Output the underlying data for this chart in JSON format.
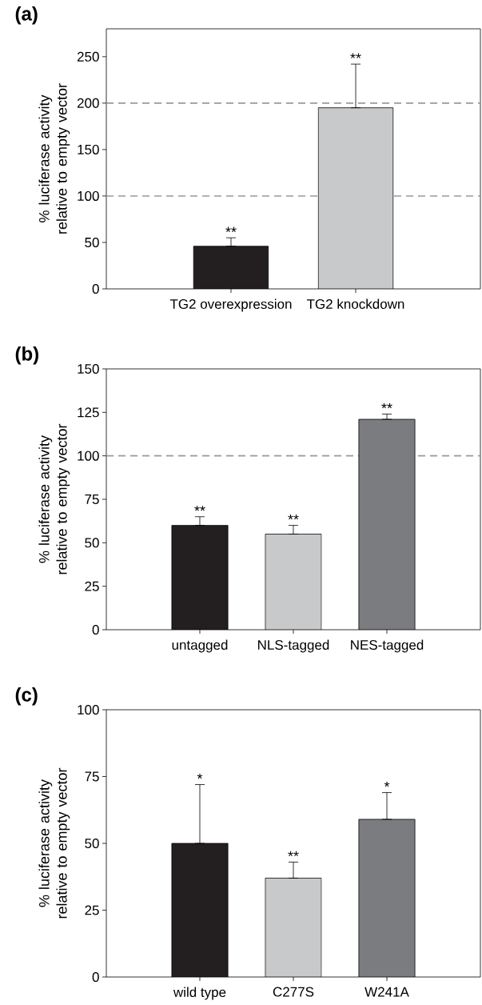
{
  "chart_data": [
    {
      "type": "bar",
      "title": "(a)",
      "ylabel": "% luciferase activity relative to empty vector",
      "categories": [
        "TG2 overexpression",
        "TG2 knockdown"
      ],
      "values": [
        46,
        195
      ],
      "errors": [
        [
          46,
          55
        ],
        [
          195,
          242
        ]
      ],
      "colors": [
        "#231f20",
        "#c8c9cb"
      ],
      "ylim": [
        0,
        280
      ],
      "yticks": [
        0,
        50,
        100,
        150,
        200,
        250
      ],
      "ref_lines": [
        {
          "axis": "y",
          "value": 100,
          "color": "#999999",
          "line_style": "dashed"
        },
        {
          "axis": "y",
          "value": 200,
          "color": "#999999",
          "line_style": "dashed"
        }
      ],
      "annotations": [
        {
          "text": "**",
          "x": "TG2 overexpression",
          "y": 55
        },
        {
          "text": "**",
          "x": "TG2 knockdown",
          "y": 242
        }
      ]
    },
    {
      "type": "bar",
      "title": "(b)",
      "ylabel": "% luciferase activity relative to empty vector",
      "categories": [
        "untagged",
        "NLS-tagged",
        "NES-tagged"
      ],
      "values": [
        60,
        55,
        121
      ],
      "errors": [
        [
          60,
          65
        ],
        [
          55,
          60
        ],
        [
          121,
          124
        ]
      ],
      "colors": [
        "#231f20",
        "#c8c9cb",
        "#7b7c7f"
      ],
      "ylim": [
        0,
        150
      ],
      "yticks": [
        0,
        25,
        50,
        75,
        100,
        125,
        150
      ],
      "ref_lines": [
        {
          "axis": "y",
          "value": 100,
          "color": "#999999",
          "line_style": "dashed"
        }
      ],
      "annotations": [
        {
          "text": "**",
          "x": "untagged",
          "y": 65
        },
        {
          "text": "**",
          "x": "NLS-tagged",
          "y": 60
        },
        {
          "text": "**",
          "x": "NES-tagged",
          "y": 124
        }
      ]
    },
    {
      "type": "bar",
      "title": "(c)",
      "ylabel": "% luciferase activity relative to empty vector",
      "categories": [
        "wild type",
        "C277S",
        "W241A"
      ],
      "values": [
        50,
        37,
        59
      ],
      "errors": [
        [
          50,
          72
        ],
        [
          37,
          43
        ],
        [
          59,
          69
        ]
      ],
      "colors": [
        "#231f20",
        "#c8c9cb",
        "#7b7c7f"
      ],
      "ylim": [
        0,
        100
      ],
      "yticks": [
        0,
        25,
        50,
        75,
        100
      ],
      "annotations": [
        {
          "text": "*",
          "x": "wild type",
          "y": 72
        },
        {
          "text": "**",
          "x": "C277S",
          "y": 43
        },
        {
          "text": "*",
          "x": "W241A",
          "y": 69
        }
      ]
    }
  ]
}
